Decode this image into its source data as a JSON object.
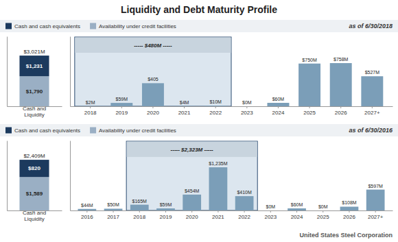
{
  "chart_data": [
    {
      "type": "bar",
      "stacked": true,
      "title": "Liquidity and Debt Maturity Profile",
      "footer": "United States Steel Corporation",
      "subtitle": "as of 6/30/2018",
      "categories": [
        "Cash and\nLiquidity"
      ],
      "series": [
        {
          "name": "Availability under credit facilities",
          "color": "#9aafc4",
          "values": [
            1790
          ],
          "value_labels": [
            "$1,790"
          ]
        },
        {
          "name": "Cash and cash equivalents",
          "color": "#1c3a5e",
          "values": [
            1231
          ],
          "value_labels": [
            "$1,231"
          ]
        }
      ],
      "totals": [
        3021
      ],
      "total_labels": [
        "$3,021M"
      ],
      "ylim": [
        0,
        4168.98
      ],
      "legend": "upper left",
      "data_labels": true,
      "tick_labels": "x"
    },
    {
      "type": "bar",
      "categories": [
        "2018",
        "2019",
        "2020",
        "2021",
        "2022",
        "2023",
        "2024",
        "2025",
        "2026",
        "2027+"
      ],
      "values": [
        2,
        59,
        405,
        4,
        10,
        0,
        60,
        750,
        758,
        527
      ],
      "value_labels": [
        "$2M",
        "$59M",
        "$405",
        "$4M",
        "$10M",
        "$0M",
        "$60M",
        "$750M",
        "$758M",
        "$527M"
      ],
      "color": "#7b9eb8",
      "annotations": [
        {
          "text": "----- $480M -----",
          "from": "2018",
          "to": "2022"
        }
      ],
      "ylim": [
        0,
        1227.96
      ],
      "data_labels": true,
      "tick_labels": "x"
    },
    {
      "type": "bar",
      "stacked": true,
      "subtitle": "as of 6/30/2016",
      "categories": [
        "Cash and\nLiquidity"
      ],
      "series": [
        {
          "name": "Availability under credit facilities",
          "color": "#9aafc4",
          "values": [
            1589
          ],
          "value_labels": [
            "$1,589"
          ]
        },
        {
          "name": "Cash and cash equivalents",
          "color": "#1c3a5e",
          "values": [
            820
          ],
          "value_labels": [
            "$820"
          ]
        }
      ],
      "totals": [
        2409
      ],
      "total_labels": [
        "$2,409M"
      ],
      "ylim": [
        0,
        3324.42
      ],
      "legend": "upper left",
      "data_labels": true,
      "tick_labels": "x"
    },
    {
      "type": "bar",
      "categories": [
        "2016",
        "2017",
        "2018",
        "2019",
        "2020",
        "2021",
        "2022",
        "2023",
        "2024",
        "2025",
        "2026",
        "2027+"
      ],
      "values": [
        44,
        50,
        165,
        59,
        454,
        1235,
        410,
        0,
        60,
        0,
        108,
        597
      ],
      "value_labels": [
        "$44M",
        "$50M",
        "$165M",
        "$59M",
        "$454M",
        "$1,235M",
        "$410M",
        "$0M",
        "$60M",
        "$0M",
        "$108M",
        "$597M"
      ],
      "color": "#7b9eb8",
      "annotations": [
        {
          "text": "----- $2,323M -----",
          "from": "2018",
          "to": "2022"
        }
      ],
      "ylim": [
        0,
        2000.7
      ],
      "data_labels": true,
      "tick_labels": "x"
    }
  ]
}
